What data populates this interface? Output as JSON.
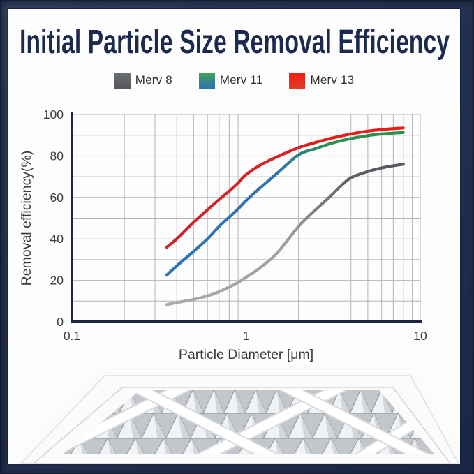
{
  "title": "Initial Particle Size Removal Efficiency",
  "title_color": "#1b2a4e",
  "legend": {
    "items": [
      {
        "id": "merv8",
        "label": "Merv 8",
        "swatch_top": "#6c6f74",
        "swatch_bottom": "#54565c"
      },
      {
        "id": "merv11",
        "label": "Merv 11",
        "swatch_top": "#3ba35a",
        "swatch_bottom": "#3172b0"
      },
      {
        "id": "merv13",
        "label": "Merv 13",
        "swatch_top": "#f21d10",
        "swatch_bottom": "#dd3d24"
      }
    ]
  },
  "chart_data": {
    "type": "line",
    "x_scale": "log",
    "xlabel": "Particle Diameter [μm]",
    "ylabel": "Removal efficiency(%)",
    "xlim": [
      0.1,
      10
    ],
    "ylim": [
      0,
      100
    ],
    "x_ticks": [
      {
        "value": 0.1,
        "label": "0.1"
      },
      {
        "value": 1,
        "label": "1"
      },
      {
        "value": 10,
        "label": "10"
      }
    ],
    "y_ticks": [
      0,
      20,
      40,
      60,
      80,
      100
    ],
    "y_minor_step": 10,
    "grid": true,
    "grid_color": "#b2b4b8",
    "axis_color": "#1c2742",
    "tick_color": "#3b3b3b",
    "x": [
      0.35,
      0.4,
      0.5,
      0.6,
      0.7,
      0.8,
      0.9,
      1,
      1.2,
      1.5,
      2,
      2.5,
      3,
      3.5,
      4,
      5,
      6,
      7,
      8
    ],
    "series": [
      {
        "name": "Merv 8",
        "values": [
          8.3,
          9.3,
          10.8,
          12.5,
          14.5,
          16.8,
          19,
          21.5,
          26,
          33,
          46,
          54,
          60,
          65.5,
          69.5,
          72.5,
          74.2,
          75.3,
          76
        ],
        "gradient_stops": [
          [
            0,
            "#a9abae"
          ],
          [
            0.5,
            "#9da0a4"
          ],
          [
            0.62,
            "#808288"
          ],
          [
            0.78,
            "#5e6067"
          ],
          [
            1,
            "#55575e"
          ]
        ]
      },
      {
        "name": "Merv 11",
        "values": [
          22.5,
          27,
          34,
          40,
          46,
          50.5,
          54.5,
          58.5,
          64.5,
          71.5,
          80.5,
          83.5,
          85.8,
          87.3,
          88.4,
          89.8,
          90.6,
          91,
          91.3
        ],
        "gradient_stops": [
          [
            0,
            "#3273b1"
          ],
          [
            0.45,
            "#3273b1"
          ],
          [
            0.58,
            "#2d8379"
          ],
          [
            0.7,
            "#2e9150"
          ],
          [
            1,
            "#2c8f4e"
          ]
        ]
      },
      {
        "name": "Merv 13",
        "values": [
          36,
          40,
          48,
          54,
          59,
          63,
          67,
          71,
          75.5,
          79.5,
          84,
          86.5,
          88.3,
          89.6,
          90.6,
          92,
          92.7,
          93.2,
          93.5
        ],
        "gradient_stops": [
          [
            0,
            "#c9252b"
          ],
          [
            0.55,
            "#dc2220"
          ],
          [
            1,
            "#ee1c15"
          ]
        ]
      }
    ],
    "legend_position": "top"
  },
  "footer_image": {
    "name": "pleated-air-filter-photo",
    "description": "Angled view of a white-framed pleated air filter with diamond lattice"
  }
}
